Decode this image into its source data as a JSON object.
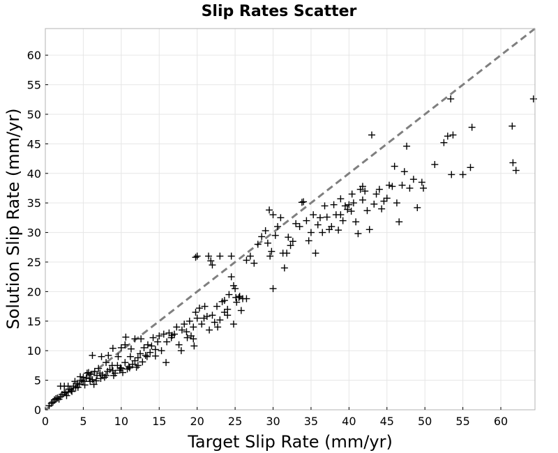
{
  "chart_data": {
    "type": "scatter",
    "title": "Slip Rates Scatter",
    "xlabel": "Target Slip Rate (mm/yr)",
    "ylabel": "Solution Slip Rate (mm/yr)",
    "xlim": [
      0,
      64.5
    ],
    "ylim": [
      0,
      64.5
    ],
    "xticks": [
      "0",
      "5",
      "10",
      "15",
      "20",
      "25",
      "30",
      "35",
      "40",
      "45",
      "50",
      "55",
      "60"
    ],
    "yticks": [
      "0",
      "5",
      "10",
      "15",
      "20",
      "25",
      "30",
      "35",
      "40",
      "45",
      "50",
      "55",
      "60"
    ],
    "grid": true,
    "marker": "plus",
    "marker_color": "#000000",
    "reference_line": {
      "style": "dashed",
      "color": "#7f7f7f",
      "from": [
        0,
        0
      ],
      "to": [
        64.5,
        64.5
      ]
    },
    "points": [
      [
        0.5,
        0.7
      ],
      [
        0.8,
        1.1
      ],
      [
        1.0,
        1.3
      ],
      [
        1.2,
        1.7
      ],
      [
        1.4,
        1.9
      ],
      [
        1.6,
        2.0
      ],
      [
        2.0,
        2.2
      ],
      [
        2.2,
        2.6
      ],
      [
        2.5,
        2.9
      ],
      [
        2.8,
        2.4
      ],
      [
        3.0,
        3.0
      ],
      [
        3.2,
        3.5
      ],
      [
        3.5,
        3.1
      ],
      [
        3.7,
        4.0
      ],
      [
        3.0,
        4.0
      ],
      [
        2.5,
        4.0
      ],
      [
        2.0,
        4.0
      ],
      [
        4.0,
        3.7
      ],
      [
        4.2,
        4.5
      ],
      [
        4.5,
        4.3
      ],
      [
        4.8,
        5.0
      ],
      [
        5.0,
        4.8
      ],
      [
        5.0,
        5.5
      ],
      [
        5.2,
        4.2
      ],
      [
        5.5,
        6.2
      ],
      [
        5.8,
        5.3
      ],
      [
        6.0,
        6.0
      ],
      [
        6.2,
        5.1
      ],
      [
        6.5,
        6.5
      ],
      [
        6.8,
        5.8
      ],
      [
        7.0,
        7.0
      ],
      [
        7.2,
        6.2
      ],
      [
        7.5,
        5.9
      ],
      [
        7.8,
        5.5
      ],
      [
        8.0,
        8.0
      ],
      [
        8.2,
        6.5
      ],
      [
        8.5,
        6.8
      ],
      [
        8.8,
        7.5
      ],
      [
        9.0,
        5.8
      ],
      [
        9.2,
        6.2
      ],
      [
        9.5,
        7.5
      ],
      [
        9.8,
        6.7
      ],
      [
        10.0,
        7.0
      ],
      [
        10.2,
        6.3
      ],
      [
        10.5,
        8.0
      ],
      [
        10.8,
        6.9
      ],
      [
        11.0,
        7.3
      ],
      [
        11.2,
        9.0
      ],
      [
        11.5,
        7.7
      ],
      [
        11.8,
        8.3
      ],
      [
        12.0,
        7.2
      ],
      [
        12.2,
        8.8
      ],
      [
        12.5,
        9.5
      ],
      [
        12.8,
        8.1
      ],
      [
        13.0,
        10.5
      ],
      [
        13.2,
        9.2
      ],
      [
        13.5,
        11.0
      ],
      [
        13.8,
        9.7
      ],
      [
        14.0,
        10.8
      ],
      [
        14.2,
        12.2
      ],
      [
        14.5,
        10.2
      ],
      [
        14.8,
        11.5
      ],
      [
        15.0,
        12.5
      ],
      [
        15.3,
        10.0
      ],
      [
        15.6,
        12.8
      ],
      [
        16.0,
        11.5
      ],
      [
        16.3,
        13.0
      ],
      [
        16.6,
        12.2
      ],
      [
        17.0,
        12.8
      ],
      [
        17.3,
        14.0
      ],
      [
        17.6,
        11.0
      ],
      [
        18.0,
        13.5
      ],
      [
        18.3,
        14.5
      ],
      [
        18.6,
        13.2
      ],
      [
        19.0,
        15.0
      ],
      [
        19.2,
        12.5
      ],
      [
        19.5,
        14.0
      ],
      [
        19.8,
        16.5
      ],
      [
        20.0,
        15.5
      ],
      [
        20.3,
        17.2
      ],
      [
        20.6,
        14.5
      ],
      [
        21.0,
        17.5
      ],
      [
        21.3,
        15.8
      ],
      [
        21.6,
        13.5
      ],
      [
        22.0,
        16.0
      ],
      [
        22.3,
        14.8
      ],
      [
        22.6,
        17.5
      ],
      [
        23.0,
        15.2
      ],
      [
        23.3,
        18.3
      ],
      [
        23.6,
        16.5
      ],
      [
        24.0,
        17.0
      ],
      [
        24.2,
        19.5
      ],
      [
        24.5,
        22.5
      ],
      [
        24.8,
        21.0
      ],
      [
        25.0,
        20.5
      ],
      [
        25.2,
        18.2
      ],
      [
        25.5,
        19.0
      ],
      [
        25.8,
        16.8
      ],
      [
        26.0,
        18.8
      ],
      [
        26.5,
        18.8
      ],
      [
        24.0,
        16.0
      ],
      [
        24.8,
        14.5
      ],
      [
        25.6,
        19.2
      ],
      [
        20.0,
        26.0
      ],
      [
        19.8,
        25.8
      ],
      [
        21.5,
        26.0
      ],
      [
        21.8,
        25.2
      ],
      [
        22.0,
        24.5
      ],
      [
        23.0,
        26.0
      ],
      [
        24.5,
        26.0
      ],
      [
        26.5,
        25.3
      ],
      [
        27.0,
        26.0
      ],
      [
        27.5,
        24.8
      ],
      [
        28.0,
        28.0
      ],
      [
        28.5,
        29.3
      ],
      [
        29.0,
        30.3
      ],
      [
        29.3,
        28.2
      ],
      [
        29.6,
        26.0
      ],
      [
        29.8,
        26.8
      ],
      [
        30.0,
        33.0
      ],
      [
        30.3,
        29.5
      ],
      [
        30.6,
        31.0
      ],
      [
        31.0,
        32.5
      ],
      [
        31.3,
        26.5
      ],
      [
        31.5,
        24.0
      ],
      [
        31.8,
        26.5
      ],
      [
        32.0,
        29.2
      ],
      [
        32.3,
        27.8
      ],
      [
        32.6,
        28.5
      ],
      [
        33.0,
        31.5
      ],
      [
        33.5,
        31.0
      ],
      [
        34.0,
        35.2
      ],
      [
        34.4,
        32.0
      ],
      [
        34.7,
        28.6
      ],
      [
        35.0,
        30.0
      ],
      [
        35.3,
        33.0
      ],
      [
        35.6,
        26.5
      ],
      [
        35.9,
        31.3
      ],
      [
        36.2,
        32.5
      ],
      [
        36.5,
        30.0
      ],
      [
        36.8,
        34.5
      ],
      [
        37.1,
        32.6
      ],
      [
        37.4,
        30.5
      ],
      [
        37.7,
        31.0
      ],
      [
        38.0,
        34.7
      ],
      [
        38.3,
        33.0
      ],
      [
        38.6,
        30.4
      ],
      [
        38.9,
        33.0
      ],
      [
        39.2,
        32.0
      ],
      [
        39.5,
        34.5
      ],
      [
        39.8,
        33.9
      ],
      [
        40.0,
        34.7
      ],
      [
        40.3,
        33.6
      ],
      [
        40.6,
        35.0
      ],
      [
        40.9,
        31.8
      ],
      [
        41.2,
        29.8
      ],
      [
        41.5,
        37.3
      ],
      [
        41.8,
        35.5
      ],
      [
        42.1,
        37.0
      ],
      [
        42.4,
        33.7
      ],
      [
        42.7,
        30.5
      ],
      [
        43.0,
        46.5
      ],
      [
        43.3,
        34.8
      ],
      [
        43.6,
        36.5
      ],
      [
        44.0,
        37.3
      ],
      [
        44.3,
        34.0
      ],
      [
        44.6,
        35.3
      ],
      [
        45.0,
        35.8
      ],
      [
        45.3,
        38.0
      ],
      [
        45.7,
        37.8
      ],
      [
        46.0,
        41.2
      ],
      [
        46.3,
        35.0
      ],
      [
        46.6,
        31.8
      ],
      [
        47.0,
        38.0
      ],
      [
        47.3,
        40.3
      ],
      [
        47.6,
        44.6
      ],
      [
        48.0,
        37.5
      ],
      [
        48.5,
        39.0
      ],
      [
        49.0,
        34.2
      ],
      [
        49.6,
        38.5
      ],
      [
        49.8,
        37.5
      ],
      [
        51.3,
        41.5
      ],
      [
        52.5,
        45.2
      ],
      [
        53.0,
        46.3
      ],
      [
        53.4,
        52.6
      ],
      [
        53.5,
        39.8
      ],
      [
        53.7,
        46.5
      ],
      [
        55.0,
        39.8
      ],
      [
        56.0,
        41.0
      ],
      [
        56.2,
        47.8
      ],
      [
        61.5,
        48.0
      ],
      [
        61.6,
        41.8
      ],
      [
        62.0,
        40.5
      ],
      [
        64.3,
        52.6
      ],
      [
        30.0,
        20.5
      ],
      [
        29.5,
        33.8
      ],
      [
        33.8,
        35.1
      ],
      [
        41.8,
        37.8
      ],
      [
        38.9,
        35.7
      ],
      [
        40.4,
        36.5
      ],
      [
        10.6,
        12.3
      ],
      [
        11.8,
        12.0
      ],
      [
        12.6,
        12.0
      ],
      [
        10.5,
        11.0
      ],
      [
        9.6,
        9.0
      ],
      [
        8.3,
        9.2
      ],
      [
        6.2,
        9.2
      ],
      [
        5.7,
        6.3
      ],
      [
        7.4,
        9.0
      ],
      [
        8.9,
        10.4
      ],
      [
        10.0,
        10.5
      ],
      [
        11.3,
        10.3
      ],
      [
        13.4,
        9.0
      ],
      [
        14.5,
        9.1
      ],
      [
        12.2,
        7.5
      ],
      [
        11.1,
        7.1
      ],
      [
        9.9,
        7.1
      ],
      [
        8.9,
        6.6
      ],
      [
        8.0,
        5.8
      ],
      [
        7.3,
        5.3
      ],
      [
        6.7,
        4.9
      ],
      [
        6.4,
        4.3
      ],
      [
        5.9,
        4.8
      ],
      [
        5.4,
        5.4
      ],
      [
        4.6,
        5.6
      ],
      [
        3.9,
        4.8
      ],
      [
        4.3,
        3.8
      ],
      [
        3.4,
        3.3
      ],
      [
        2.7,
        3.0
      ],
      [
        1.8,
        1.8
      ],
      [
        15.9,
        8.0
      ],
      [
        16.7,
        12.6
      ],
      [
        17.9,
        10.0
      ],
      [
        18.7,
        12.2
      ],
      [
        19.6,
        10.8
      ],
      [
        20.9,
        15.5
      ],
      [
        22.7,
        14.0
      ],
      [
        23.6,
        18.5
      ],
      [
        25.1,
        19.0
      ],
      [
        19.5,
        12.0
      ]
    ]
  }
}
